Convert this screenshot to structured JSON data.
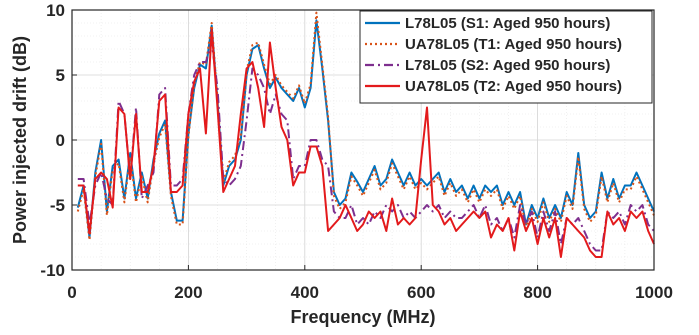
{
  "chart_data": {
    "type": "line",
    "title": "",
    "xlabel": "Frequency (MHz)",
    "ylabel": "Power injected drift (dB)",
    "xlim": [
      0,
      1000
    ],
    "ylim": [
      -10,
      10
    ],
    "x_ticks": [
      0,
      200,
      400,
      600,
      800,
      1000
    ],
    "y_ticks": [
      -10,
      -5,
      0,
      5,
      10
    ],
    "x_tick_labels": [
      "0",
      "200",
      "400",
      "600",
      "800",
      "1000"
    ],
    "y_tick_labels": [
      "-10",
      "-5",
      "0",
      "5",
      "10"
    ],
    "grid": true,
    "legend_position": "top-right",
    "x": [
      10,
      20,
      30,
      40,
      50,
      60,
      70,
      80,
      90,
      100,
      110,
      120,
      130,
      140,
      150,
      160,
      170,
      180,
      190,
      200,
      210,
      220,
      230,
      240,
      250,
      260,
      270,
      280,
      290,
      300,
      310,
      320,
      330,
      340,
      350,
      360,
      370,
      380,
      390,
      400,
      410,
      420,
      430,
      440,
      450,
      460,
      470,
      480,
      490,
      500,
      510,
      520,
      530,
      540,
      550,
      560,
      570,
      580,
      590,
      600,
      610,
      620,
      630,
      640,
      650,
      660,
      670,
      680,
      690,
      700,
      710,
      720,
      730,
      740,
      750,
      760,
      770,
      780,
      790,
      800,
      810,
      820,
      830,
      840,
      850,
      860,
      870,
      880,
      890,
      900,
      910,
      920,
      930,
      940,
      950,
      960,
      970,
      980,
      990,
      1000
    ],
    "series": [
      {
        "name": "L78L05 (S1: Aged 950 hours)",
        "color": "#0072BD",
        "dash": "solid",
        "values": [
          -5.2,
          -3.5,
          -7.5,
          -2.5,
          0.0,
          -5.5,
          -2.0,
          -1.5,
          -4.5,
          -1.0,
          -4.5,
          -2.5,
          -4.5,
          -1.5,
          0.5,
          1.5,
          -4.0,
          -6.2,
          -6.2,
          0.5,
          4.0,
          5.8,
          5.5,
          8.8,
          3.0,
          -3.5,
          -2.0,
          -1.5,
          0.0,
          5.0,
          7.0,
          7.3,
          5.5,
          4.0,
          4.8,
          4.0,
          3.5,
          3.0,
          4.0,
          2.5,
          4.0,
          9.2,
          5.5,
          1.5,
          -4.0,
          -5.0,
          -4.5,
          -2.5,
          -3.2,
          -4.0,
          -3.0,
          -2.0,
          -3.5,
          -3.0,
          -1.5,
          -2.5,
          -3.5,
          -2.5,
          -3.5,
          -3.0,
          -3.5,
          -3.0,
          -2.5,
          -4.0,
          -3.0,
          -4.0,
          -3.5,
          -4.5,
          -3.5,
          -4.5,
          -3.5,
          -4.0,
          -3.5,
          -5.0,
          -4.0,
          -5.0,
          -4.0,
          -6.5,
          -5.0,
          -6.0,
          -4.5,
          -6.0,
          -5.0,
          -6.0,
          -4.0,
          -5.0,
          -1.0,
          -5.0,
          -6.0,
          -5.5,
          -2.5,
          -4.5,
          -3.0,
          -4.5,
          -3.5,
          -3.5,
          -2.5,
          -3.5,
          -4.5,
          -5.5
        ]
      },
      {
        "name": "UA78L05 (T1: Aged 950 hours)",
        "color": "#D95319",
        "dash": "dotted",
        "values": [
          -5.5,
          -3.8,
          -7.7,
          -2.8,
          -0.3,
          -5.8,
          -2.3,
          -1.8,
          -4.8,
          -1.3,
          -4.8,
          -2.8,
          -4.8,
          -1.8,
          0.2,
          1.2,
          -4.3,
          -6.5,
          -6.5,
          0.2,
          4.3,
          6.0,
          5.8,
          9.0,
          3.2,
          -3.2,
          -1.7,
          -1.2,
          0.3,
          5.3,
          7.3,
          7.5,
          5.8,
          4.3,
          5.0,
          4.2,
          3.7,
          3.2,
          4.2,
          2.8,
          4.3,
          9.8,
          5.8,
          1.8,
          -4.3,
          -5.3,
          -4.8,
          -2.8,
          -3.5,
          -4.3,
          -3.3,
          -2.3,
          -3.8,
          -3.3,
          -1.8,
          -2.8,
          -3.8,
          -2.8,
          -3.8,
          -3.3,
          -3.8,
          -3.3,
          -2.8,
          -4.3,
          -3.3,
          -4.3,
          -3.8,
          -4.8,
          -3.8,
          -4.8,
          -3.8,
          -4.3,
          -3.8,
          -5.3,
          -4.3,
          -5.3,
          -4.3,
          -6.8,
          -5.3,
          -6.3,
          -4.8,
          -6.3,
          -5.3,
          -6.3,
          -4.3,
          -5.3,
          -1.3,
          -5.3,
          -6.3,
          -5.8,
          -2.8,
          -4.8,
          -3.3,
          -4.8,
          -3.8,
          -3.8,
          -2.8,
          -3.8,
          -4.8,
          -5.8
        ]
      },
      {
        "name": "L78L05 (S2: Aged 950 hours)",
        "color": "#7E2F8E",
        "dash": "dashdot",
        "values": [
          -3.0,
          -3.0,
          -6.5,
          -3.5,
          -2.5,
          -4.5,
          -5.0,
          3.0,
          2.0,
          -3.0,
          2.5,
          -4.5,
          -3.5,
          -2.5,
          3.5,
          4.0,
          -3.5,
          -3.5,
          -3.0,
          2.0,
          5.0,
          6.0,
          6.0,
          7.5,
          4.0,
          -3.0,
          -3.5,
          -3.0,
          -2.0,
          1.5,
          5.5,
          5.0,
          4.0,
          2.0,
          3.5,
          2.0,
          1.5,
          -3.0,
          -2.0,
          -2.0,
          0.0,
          0.0,
          -1.5,
          -2.0,
          -5.5,
          -6.0,
          -6.0,
          -5.0,
          -6.5,
          -6.0,
          -6.5,
          -5.5,
          -6.0,
          -5.0,
          -5.5,
          -5.0,
          -6.0,
          -5.5,
          -6.0,
          -5.5,
          -5.0,
          -5.5,
          -5.0,
          -6.0,
          -5.5,
          -6.0,
          -6.0,
          -5.5,
          -5.0,
          -6.0,
          -5.0,
          -6.5,
          -6.0,
          -7.0,
          -6.0,
          -7.5,
          -5.0,
          -6.5,
          -5.5,
          -7.5,
          -5.5,
          -7.0,
          -5.5,
          -8.0,
          -6.0,
          -6.5,
          -6.0,
          -7.0,
          -8.0,
          -8.5,
          -8.5,
          -5.5,
          -6.0,
          -5.5,
          -6.5,
          -5.0,
          -5.5,
          -5.0,
          -6.5,
          -7.0
        ]
      },
      {
        "name": "UA78L05 (T2: Aged 950 hours)",
        "color": "#E31A1C",
        "dash": "solid",
        "values": [
          -3.5,
          -3.5,
          -7.2,
          -3.0,
          -2.5,
          -3.0,
          -5.2,
          2.5,
          2.0,
          -3.0,
          2.0,
          -4.0,
          -4.0,
          -2.0,
          3.0,
          3.5,
          -4.0,
          -4.0,
          -3.5,
          2.0,
          4.5,
          5.5,
          0.5,
          8.5,
          2.5,
          -4.0,
          -3.0,
          -2.0,
          2.0,
          5.5,
          6.0,
          4.0,
          1.0,
          7.5,
          4.0,
          1.0,
          0.0,
          -3.5,
          -2.5,
          -2.5,
          -0.5,
          -0.5,
          -2.0,
          -7.0,
          -6.5,
          -6.0,
          -5.0,
          -6.0,
          -7.0,
          -6.5,
          -5.5,
          -6.0,
          -5.5,
          -7.0,
          -4.5,
          -6.5,
          -6.0,
          -6.5,
          -6.0,
          -1.5,
          2.5,
          -5.0,
          -5.5,
          -6.5,
          -6.0,
          -7.0,
          -6.5,
          -6.0,
          -5.5,
          -6.0,
          -5.5,
          -7.5,
          -6.5,
          -7.0,
          -6.0,
          -8.5,
          -5.5,
          -7.0,
          -6.0,
          -8.0,
          -6.0,
          -7.5,
          -6.0,
          -9.0,
          -6.0,
          -6.5,
          -7.0,
          -7.5,
          -8.5,
          -9.0,
          -9.0,
          -5.5,
          -6.5,
          -6.0,
          -7.0,
          -5.5,
          -6.0,
          -5.5,
          -7.0,
          -8.0
        ]
      }
    ]
  }
}
